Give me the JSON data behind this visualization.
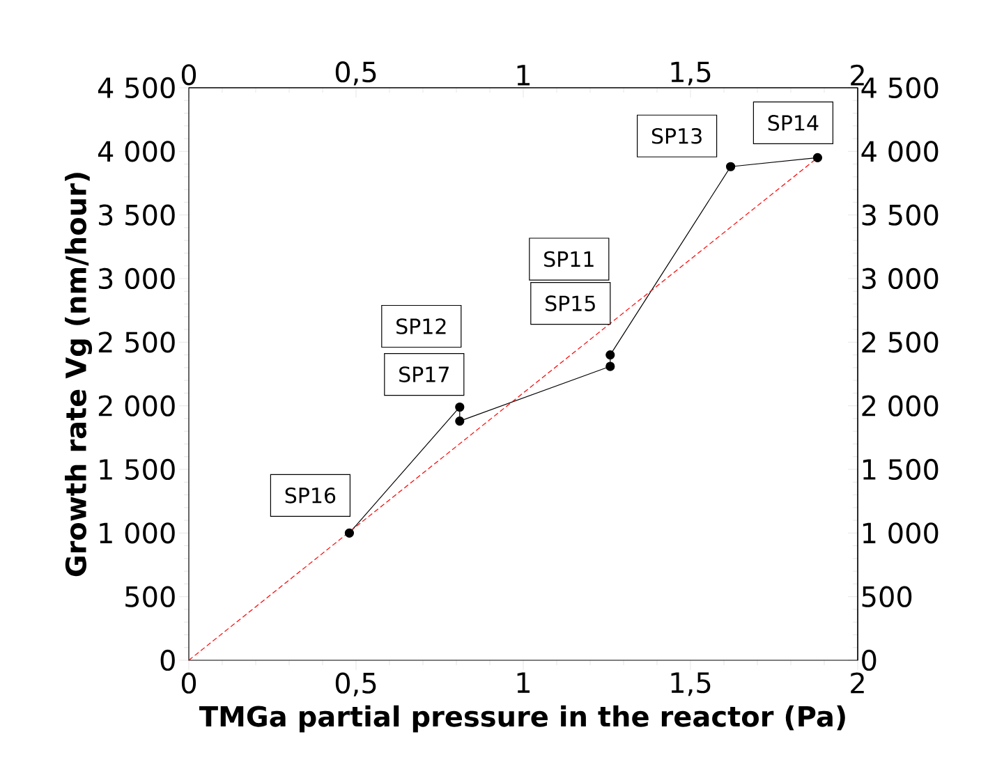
{
  "chart_data": {
    "type": "line",
    "xlabel": "TMGa partial pressure in the reactor (Pa)",
    "ylabel": "Growth rate Vg (nm/hour)",
    "xlim": [
      0,
      2
    ],
    "xticks": [
      0,
      {
        "value": 0.5,
        "label": "0,5"
      },
      1,
      {
        "value": 1.5,
        "label": "1,5"
      },
      2
    ],
    "x2lim": [
      0,
      2
    ],
    "x2ticks": [
      0,
      {
        "value": 0.5,
        "label": "0,5"
      },
      1,
      {
        "value": 1.5,
        "label": "1,5"
      },
      2
    ],
    "ylim": [
      0,
      4500
    ],
    "yticks": [
      0,
      500,
      {
        "value": 1000,
        "label": "1 000"
      },
      {
        "value": 1500,
        "label": "1 500"
      },
      {
        "value": 2000,
        "label": "2 000"
      },
      {
        "value": 2500,
        "label": "2 500"
      },
      {
        "value": 3000,
        "label": "3 000"
      },
      {
        "value": 3500,
        "label": "3 500"
      },
      {
        "value": 4000,
        "label": "4 000"
      },
      {
        "value": 4500,
        "label": "4 500"
      }
    ],
    "y2lim": [
      0,
      4500
    ],
    "y2ticks": [
      0,
      500,
      {
        "value": 1000,
        "label": "1 000"
      },
      {
        "value": 1500,
        "label": "1 500"
      },
      {
        "value": 2000,
        "label": "2 000"
      },
      {
        "value": 2500,
        "label": "2 500"
      },
      {
        "value": 3000,
        "label": "3 000"
      },
      {
        "value": 3500,
        "label": "3 500"
      },
      {
        "value": 4000,
        "label": "4 000"
      },
      {
        "value": 4500,
        "label": "4 500"
      }
    ],
    "series": [
      {
        "color": "#000000",
        "marker": "circle",
        "line_style": "solid",
        "x": [
          0.48,
          0.81,
          0.81,
          1.26,
          1.26,
          1.62,
          1.88
        ],
        "values": [
          1000,
          1990,
          1880,
          2310,
          2400,
          3880,
          3950
        ]
      },
      {
        "color": "#ff0000",
        "marker": "none",
        "line_style": "dashed",
        "x": [
          0,
          1.88
        ],
        "values": [
          0,
          3950
        ]
      }
    ],
    "annotations": [
      "SP16",
      "SP12",
      "SP17",
      "SP11",
      "SP15",
      "SP13",
      "SP14"
    ]
  }
}
